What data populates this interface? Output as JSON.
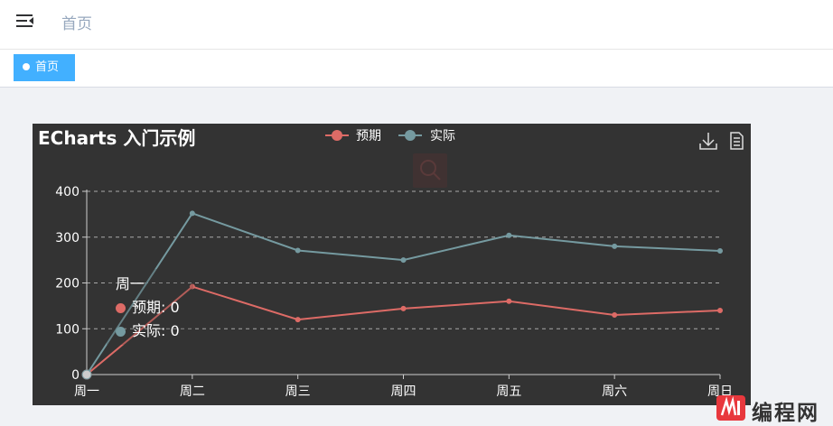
{
  "header": {
    "breadcrumb": "首页"
  },
  "tags": [
    {
      "label": "首页"
    }
  ],
  "chart_data": {
    "type": "line",
    "title": "ECharts 入门示例",
    "categories": [
      "周一",
      "周二",
      "周三",
      "周四",
      "周五",
      "周六",
      "周日"
    ],
    "series": [
      {
        "name": "预期",
        "color": "#dd6b66",
        "values": [
          0,
          192,
          120,
          144,
          160,
          130,
          140
        ]
      },
      {
        "name": "实际",
        "color": "#759aa0",
        "values": [
          0,
          352,
          271,
          250,
          304,
          280,
          270
        ]
      }
    ],
    "ylim": [
      0,
      400
    ],
    "yticks": [
      0,
      100,
      200,
      300,
      400
    ],
    "grid": "horizontal dashed",
    "legend": "top-center",
    "background": "#333333",
    "toolbox": [
      "download-icon",
      "data-view-icon"
    ]
  },
  "tooltip": {
    "category": "周一",
    "items": [
      {
        "label": "预期: 0",
        "color": "#dd6b66"
      },
      {
        "label": "实际: 0",
        "color": "#759aa0"
      }
    ]
  },
  "watermark": {
    "text": "编程网"
  }
}
